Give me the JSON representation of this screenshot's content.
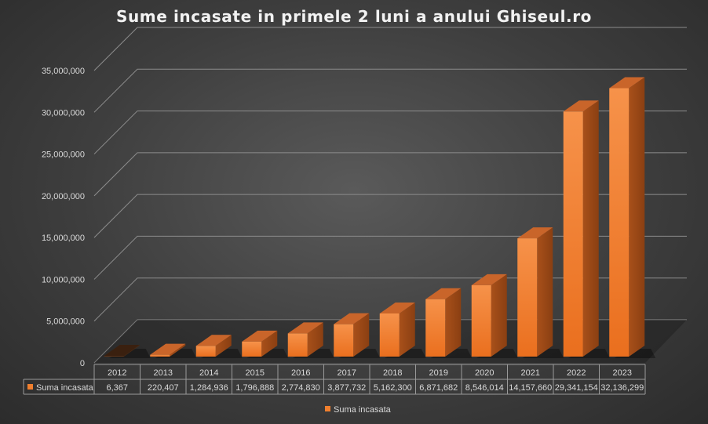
{
  "chart_data": {
    "type": "bar",
    "title": "Sume incasate in primele 2 luni a anului Ghiseul.ro",
    "categories": [
      "2012",
      "2013",
      "2014",
      "2015",
      "2016",
      "2017",
      "2018",
      "2019",
      "2020",
      "2021",
      "2022",
      "2023"
    ],
    "series": [
      {
        "name": "Suma incasata",
        "values": [
          6367,
          220407,
          1284936,
          1796888,
          2774830,
          3877732,
          5162300,
          6871682,
          8546014,
          14157660,
          29341154,
          32136299
        ],
        "value_labels": [
          "6,367",
          "220,407",
          "1,284,936",
          "1,796,888",
          "2,774,830",
          "3,877,732",
          "5,162,300",
          "6,871,682",
          "8,546,014",
          "14,157,660",
          "29,341,154",
          "32,136,299"
        ],
        "color": "#f07f2e"
      }
    ],
    "yticks": [
      "0",
      "5,000,000",
      "10,000,000",
      "15,000,000",
      "20,000,000",
      "25,000,000",
      "30,000,000",
      "35,000,000"
    ],
    "ylim": [
      0,
      35000000
    ],
    "grid": true,
    "legend": "bottom",
    "data_table": true,
    "style": "3d-column"
  }
}
